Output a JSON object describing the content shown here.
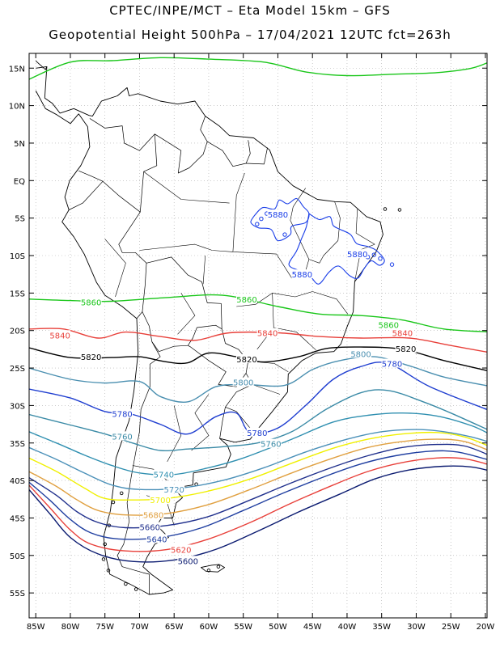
{
  "header": {
    "line1": "CPTEC/INPE/MCT –  Eta Model 15km – GFS",
    "line2": "Geopotential Height 500hPa – 17/04/2021 12UTC fct=263h"
  },
  "axes": {
    "lat_labels": [
      "15N",
      "10N",
      "5N",
      "EQ",
      "5S",
      "10S",
      "15S",
      "20S",
      "25S",
      "30S",
      "35S",
      "40S",
      "45S",
      "50S",
      "55S"
    ],
    "lon_labels": [
      "85W",
      "80W",
      "75W",
      "70W",
      "65W",
      "60W",
      "55W",
      "50W",
      "45W",
      "40W",
      "35W",
      "30W",
      "25W",
      "20W"
    ]
  },
  "colors": {
    "c5880": "#1a3ee8",
    "c5860": "#19c619",
    "c5840": "#e8403a",
    "c5820": "#000000",
    "c5800": "#4a8fb0",
    "c5780": "#1f3ed0",
    "c5760": "#3a8aa6",
    "c5740": "#2f8fb0",
    "c5720": "#4a90b8",
    "c5700": "#f0f000",
    "c5680": "#e0a040",
    "c5660": "#1f2f8c",
    "c5640": "#1f3ea0",
    "c5620": "#e8403a",
    "c5600": "#0a1a70"
  },
  "contour_labels": [
    {
      "text": "5880",
      "color": "c5880",
      "lon": -50,
      "lat": -4.5
    },
    {
      "text": "5880",
      "color": "c5880",
      "lon": -38.5,
      "lat": -9.8
    },
    {
      "text": "5880",
      "color": "c5880",
      "lon": -46.5,
      "lat": -12.5
    },
    {
      "text": "5860",
      "color": "c5860",
      "lon": -77,
      "lat": -16.2
    },
    {
      "text": "5860",
      "color": "c5860",
      "lon": -54.5,
      "lat": -15.8
    },
    {
      "text": "5860",
      "color": "c5860",
      "lon": -34,
      "lat": -19.2
    },
    {
      "text": "5840",
      "color": "c5840",
      "lon": -81.5,
      "lat": -20.6
    },
    {
      "text": "5840",
      "color": "c5840",
      "lon": -51.5,
      "lat": -20.3
    },
    {
      "text": "5840",
      "color": "c5840",
      "lon": -32,
      "lat": -20.3
    },
    {
      "text": "5820",
      "color": "c5820",
      "lon": -77,
      "lat": -23.5
    },
    {
      "text": "5820",
      "color": "c5820",
      "lon": -54.5,
      "lat": -23.8
    },
    {
      "text": "5820",
      "color": "c5820",
      "lon": -31.5,
      "lat": -22.4
    },
    {
      "text": "5800",
      "color": "c5800",
      "lon": -55,
      "lat": -26.9
    },
    {
      "text": "5800",
      "color": "c5800",
      "lon": -38,
      "lat": -23.1
    },
    {
      "text": "5780",
      "color": "c5780",
      "lon": -33.5,
      "lat": -24.4
    },
    {
      "text": "5780",
      "color": "c5780",
      "lon": -72.5,
      "lat": -31.1
    },
    {
      "text": "5780",
      "color": "c5780",
      "lon": -53,
      "lat": -33.6
    },
    {
      "text": "5760",
      "color": "c5760",
      "lon": -72.5,
      "lat": -34.1
    },
    {
      "text": "5760",
      "color": "c5760",
      "lon": -51,
      "lat": -35.1
    },
    {
      "text": "5740",
      "color": "c5740",
      "lon": -66.5,
      "lat": -39.2
    },
    {
      "text": "5720",
      "color": "c5720",
      "lon": -65,
      "lat": -41.2
    },
    {
      "text": "5700",
      "color": "c5700",
      "lon": -67,
      "lat": -42.6
    },
    {
      "text": "5680",
      "color": "c5680",
      "lon": -68,
      "lat": -44.6
    },
    {
      "text": "5660",
      "color": "c5660",
      "lon": -68.5,
      "lat": -46.2
    },
    {
      "text": "5640",
      "color": "c5640",
      "lon": -67.5,
      "lat": -47.8
    },
    {
      "text": "5620",
      "color": "c5620",
      "lon": -64,
      "lat": -49.2
    },
    {
      "text": "5600",
      "color": "c5600",
      "lon": -63,
      "lat": -50.7
    }
  ]
}
